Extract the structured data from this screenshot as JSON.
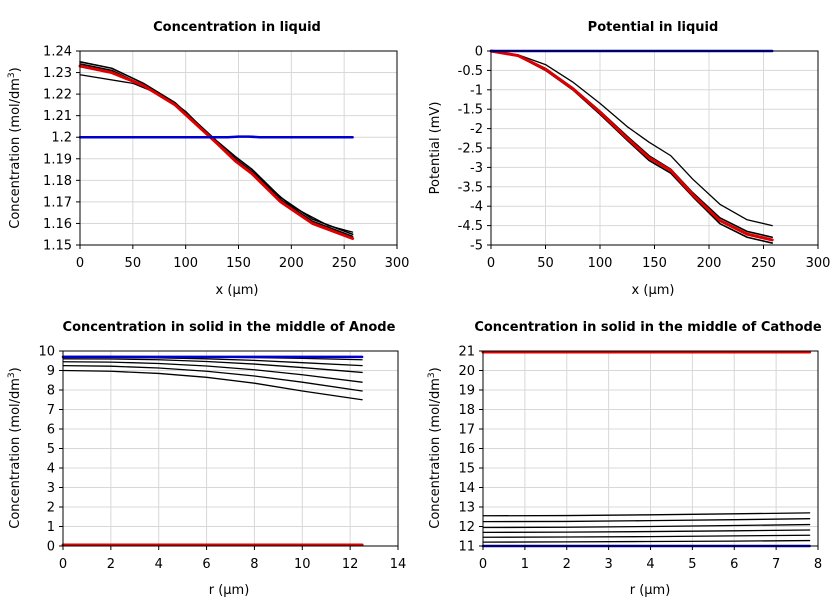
{
  "chart_data": [
    {
      "id": "p1",
      "type": "line",
      "title": "Concentration in liquid",
      "xlabel": "x (µm)",
      "ylabel_main": "Concentration (mol/dm",
      "ylabel_sup": "3",
      "ylabel_end": ")",
      "xlim": [
        0,
        300
      ],
      "ylim": [
        1.15,
        1.24
      ],
      "xticks": [
        0,
        50,
        100,
        150,
        200,
        250,
        300
      ],
      "yticks": [
        1.15,
        1.16,
        1.17,
        1.18,
        1.19,
        1.2,
        1.21,
        1.22,
        1.23,
        1.24
      ],
      "ytick_labels": [
        "1.15",
        "1.16",
        "1.17",
        "1.18",
        "1.19",
        "1.2",
        "1.21",
        "1.22",
        "1.23",
        "1.24"
      ],
      "grid": true,
      "colors": {
        "black": "#000000",
        "red": "#dd0000",
        "blue": "#0000cc"
      },
      "series": [
        {
          "color": "black",
          "width": 1.3,
          "x": [
            0,
            50,
            80,
            100,
            120,
            145,
            165,
            200,
            235,
            258
          ],
          "y": [
            1.229,
            1.225,
            1.219,
            1.212,
            1.202,
            1.19,
            1.183,
            1.168,
            1.159,
            1.156
          ]
        },
        {
          "color": "black",
          "width": 1.6,
          "x": [
            0,
            30,
            60,
            90,
            110,
            130,
            147,
            163,
            190,
            220,
            258
          ],
          "y": [
            1.234,
            1.231,
            1.224,
            1.215,
            1.206,
            1.197,
            1.19,
            1.184,
            1.171,
            1.161,
            1.154
          ]
        },
        {
          "color": "black",
          "width": 1.6,
          "x": [
            0,
            30,
            60,
            90,
            110,
            130,
            147,
            163,
            190,
            220,
            258
          ],
          "y": [
            1.235,
            1.232,
            1.225,
            1.216,
            1.207,
            1.198,
            1.191,
            1.185,
            1.172,
            1.162,
            1.155
          ]
        },
        {
          "color": "red",
          "width": 3,
          "x": [
            0,
            30,
            60,
            90,
            110,
            130,
            147,
            163,
            190,
            220,
            258
          ],
          "y": [
            1.233,
            1.23,
            1.224,
            1.215,
            1.206,
            1.197,
            1.189,
            1.183,
            1.17,
            1.16,
            1.153
          ]
        },
        {
          "color": "blue",
          "width": 2.5,
          "x": [
            0,
            140,
            150,
            160,
            170,
            258
          ],
          "y": [
            1.2,
            1.2,
            1.2003,
            1.2003,
            1.2,
            1.2
          ]
        }
      ]
    },
    {
      "id": "p2",
      "type": "line",
      "title": "Potential in liquid",
      "xlabel": "x (µm)",
      "ylabel_main": "Potential (mV)",
      "ylabel_sup": "",
      "ylabel_end": "",
      "xlim": [
        0,
        300
      ],
      "ylim": [
        -5,
        0
      ],
      "xticks": [
        0,
        50,
        100,
        150,
        200,
        250,
        300
      ],
      "yticks": [
        -5,
        -4.5,
        -4,
        -3.5,
        -3,
        -2.5,
        -2,
        -1.5,
        -1,
        -0.5,
        0
      ],
      "ytick_labels": [
        "-5",
        "-4.5",
        "-4",
        "-3.5",
        "-3",
        "-2.5",
        "-2",
        "-1.5",
        "-1",
        "-0.5",
        "0"
      ],
      "grid": true,
      "colors": {
        "black": "#000000",
        "red": "#dd0000",
        "blue": "#0000cc"
      },
      "series": [
        {
          "color": "black",
          "width": 1.3,
          "x": [
            0,
            25,
            50,
            75,
            100,
            125,
            145,
            165,
            185,
            210,
            235,
            258
          ],
          "y": [
            0,
            -0.1,
            -0.35,
            -0.8,
            -1.35,
            -1.95,
            -2.35,
            -2.7,
            -3.3,
            -3.95,
            -4.35,
            -4.5
          ]
        },
        {
          "color": "black",
          "width": 1.6,
          "x": [
            0,
            25,
            50,
            75,
            100,
            125,
            145,
            165,
            185,
            210,
            235,
            258
          ],
          "y": [
            0,
            -0.12,
            -0.45,
            -0.95,
            -1.55,
            -2.2,
            -2.7,
            -3.05,
            -3.65,
            -4.3,
            -4.65,
            -4.8
          ]
        },
        {
          "color": "black",
          "width": 1.6,
          "x": [
            0,
            25,
            50,
            75,
            100,
            125,
            145,
            165,
            185,
            210,
            235,
            258
          ],
          "y": [
            0,
            -0.13,
            -0.5,
            -1.0,
            -1.63,
            -2.3,
            -2.82,
            -3.15,
            -3.75,
            -4.45,
            -4.8,
            -4.95
          ]
        },
        {
          "color": "red",
          "width": 3,
          "x": [
            0,
            25,
            50,
            75,
            100,
            125,
            145,
            165,
            185,
            210,
            235,
            258
          ],
          "y": [
            0,
            -0.12,
            -0.47,
            -0.97,
            -1.58,
            -2.25,
            -2.75,
            -3.08,
            -3.7,
            -4.37,
            -4.72,
            -4.87
          ]
        },
        {
          "color": "blue",
          "width": 2.5,
          "x": [
            0,
            258
          ],
          "y": [
            0,
            0
          ]
        }
      ]
    },
    {
      "id": "p3",
      "type": "line",
      "title": "Concentration in solid in the middle of Anode",
      "xlabel": "r (µm)",
      "ylabel_main": "Concentration (mol/dm",
      "ylabel_sup": "3",
      "ylabel_end": ")",
      "xlim": [
        0,
        14
      ],
      "ylim": [
        0,
        10
      ],
      "xticks": [
        0,
        2,
        4,
        6,
        8,
        10,
        12,
        14
      ],
      "yticks": [
        0,
        1,
        2,
        3,
        4,
        5,
        6,
        7,
        8,
        9,
        10
      ],
      "ytick_labels": [
        "0",
        "1",
        "2",
        "3",
        "4",
        "5",
        "6",
        "7",
        "8",
        "9",
        "10"
      ],
      "grid": true,
      "colors": {
        "black": "#000000",
        "red": "#dd0000",
        "blue": "#0000cc"
      },
      "series": [
        {
          "color": "black",
          "width": 1.3,
          "x": [
            0,
            2,
            4,
            6,
            8,
            10,
            12.5
          ],
          "y": [
            9.0,
            8.96,
            8.85,
            8.65,
            8.35,
            7.95,
            7.5
          ]
        },
        {
          "color": "black",
          "width": 1.3,
          "x": [
            0,
            2,
            4,
            6,
            8,
            10,
            12.5
          ],
          "y": [
            9.25,
            9.22,
            9.13,
            8.96,
            8.72,
            8.4,
            7.95
          ]
        },
        {
          "color": "black",
          "width": 1.3,
          "x": [
            0,
            2,
            4,
            6,
            8,
            10,
            12.5
          ],
          "y": [
            9.45,
            9.43,
            9.36,
            9.23,
            9.04,
            8.78,
            8.4
          ]
        },
        {
          "color": "black",
          "width": 1.3,
          "x": [
            0,
            2,
            4,
            6,
            8,
            10,
            12.5
          ],
          "y": [
            9.6,
            9.59,
            9.55,
            9.46,
            9.33,
            9.15,
            8.9
          ]
        },
        {
          "color": "black",
          "width": 1.3,
          "x": [
            0,
            2,
            4,
            6,
            8,
            10,
            12.5
          ],
          "y": [
            9.68,
            9.67,
            9.65,
            9.6,
            9.52,
            9.4,
            9.25
          ]
        },
        {
          "color": "black",
          "width": 1.3,
          "x": [
            0,
            2,
            4,
            6,
            8,
            10,
            12.5
          ],
          "y": [
            9.72,
            9.72,
            9.71,
            9.69,
            9.66,
            9.62,
            9.55
          ]
        },
        {
          "color": "blue",
          "width": 2.5,
          "x": [
            0,
            12.5
          ],
          "y": [
            9.7,
            9.7
          ]
        },
        {
          "color": "red",
          "width": 3,
          "x": [
            0,
            12.5
          ],
          "y": [
            0.05,
            0.05
          ]
        }
      ]
    },
    {
      "id": "p4",
      "type": "line",
      "title": "Concentration in solid in the middle of Cathode",
      "xlabel": "r (µm)",
      "ylabel_main": "Concentration (mol/dm",
      "ylabel_sup": "3",
      "ylabel_end": ")",
      "xlim": [
        0,
        8
      ],
      "ylim": [
        11,
        21
      ],
      "xticks": [
        0,
        1,
        2,
        3,
        4,
        5,
        6,
        7,
        8
      ],
      "yticks": [
        11,
        12,
        13,
        14,
        15,
        16,
        17,
        18,
        19,
        20,
        21
      ],
      "ytick_labels": [
        "11",
        "12",
        "13",
        "14",
        "15",
        "16",
        "17",
        "18",
        "19",
        "20",
        "21"
      ],
      "grid": true,
      "colors": {
        "black": "#000000",
        "red": "#dd0000",
        "blue": "#0000cc"
      },
      "series": [
        {
          "color": "black",
          "width": 1.3,
          "x": [
            0,
            2,
            4,
            6,
            7.8
          ],
          "y": [
            12.55,
            12.56,
            12.6,
            12.65,
            12.7
          ]
        },
        {
          "color": "black",
          "width": 1.3,
          "x": [
            0,
            2,
            4,
            6,
            7.8
          ],
          "y": [
            12.25,
            12.26,
            12.3,
            12.35,
            12.4
          ]
        },
        {
          "color": "black",
          "width": 1.3,
          "x": [
            0,
            2,
            4,
            6,
            7.8
          ],
          "y": [
            11.95,
            11.96,
            12.0,
            12.05,
            12.1
          ]
        },
        {
          "color": "black",
          "width": 1.3,
          "x": [
            0,
            2,
            4,
            6,
            7.8
          ],
          "y": [
            11.7,
            11.71,
            11.74,
            11.78,
            11.82
          ]
        },
        {
          "color": "black",
          "width": 1.3,
          "x": [
            0,
            2,
            4,
            6,
            7.8
          ],
          "y": [
            11.45,
            11.46,
            11.48,
            11.52,
            11.55
          ]
        },
        {
          "color": "black",
          "width": 1.3,
          "x": [
            0,
            2,
            4,
            6,
            7.8
          ],
          "y": [
            11.2,
            11.21,
            11.23,
            11.25,
            11.28
          ]
        },
        {
          "color": "blue",
          "width": 2.5,
          "x": [
            0,
            7.8
          ],
          "y": [
            11.0,
            11.0
          ]
        },
        {
          "color": "red",
          "width": 3,
          "x": [
            0,
            7.8
          ],
          "y": [
            20.95,
            20.95
          ]
        }
      ]
    }
  ]
}
